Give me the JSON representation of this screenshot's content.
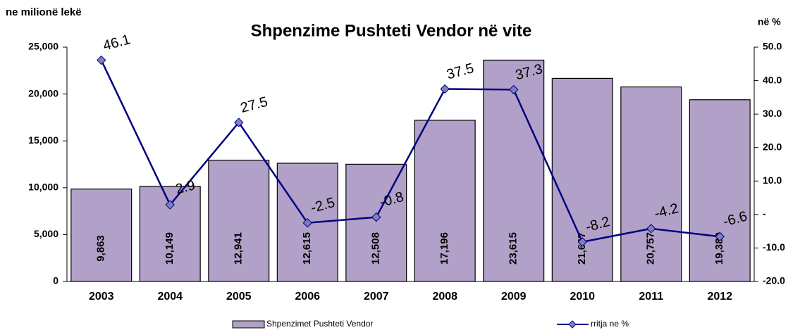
{
  "chart_data": {
    "type": "bar",
    "title": "Shpenzime Pushteti Vendor në vite",
    "y_label": "ne milionë lekë",
    "y2_label": "në %",
    "categories": [
      "2003",
      "2004",
      "2005",
      "2006",
      "2007",
      "2008",
      "2009",
      "2010",
      "2011",
      "2012"
    ],
    "series": [
      {
        "name": "Shpenzimet Pushteti Vendor",
        "type": "bar",
        "color": "#b1a0c7",
        "values": [
          9863,
          10149,
          12941,
          12615,
          12508,
          17196,
          23615,
          21667,
          20757,
          19389
        ],
        "value_labels": [
          "9,863",
          "10,149",
          "12,941",
          "12,615",
          "12,508",
          "17,196",
          "23,615",
          "21,667",
          "20,757",
          "19,389"
        ]
      },
      {
        "name": "rritja ne %",
        "type": "line",
        "color": "#000080",
        "marker_color": "#7f7fbf",
        "axis": "y2",
        "values": [
          46.1,
          2.9,
          27.5,
          -2.5,
          -0.8,
          37.5,
          37.3,
          -8.2,
          -4.2,
          -6.6
        ]
      }
    ],
    "ylim": [
      0,
      25000
    ],
    "yticks": [
      0,
      {
        "value": 5000,
        "label": "5,000"
      },
      {
        "value": 10000,
        "label": "10,000"
      },
      {
        "value": 15000,
        "label": "15,000"
      },
      {
        "value": 20000,
        "label": "20,000"
      },
      {
        "value": 25000,
        "label": "25,000"
      }
    ],
    "y2lim": [
      -20,
      50
    ],
    "y2ticks": [
      {
        "value": -20,
        "label": "-20.0"
      },
      {
        "value": -10,
        "label": "-10.0"
      },
      {
        "value": 0,
        "label": "-"
      },
      {
        "value": 10,
        "label": "10.0"
      },
      {
        "value": 20,
        "label": "20.0"
      },
      {
        "value": 30,
        "label": "30.0"
      },
      {
        "value": 40,
        "label": "40.0"
      },
      {
        "value": 50,
        "label": "50.0"
      }
    ],
    "grid": false,
    "legend": "bottom"
  }
}
